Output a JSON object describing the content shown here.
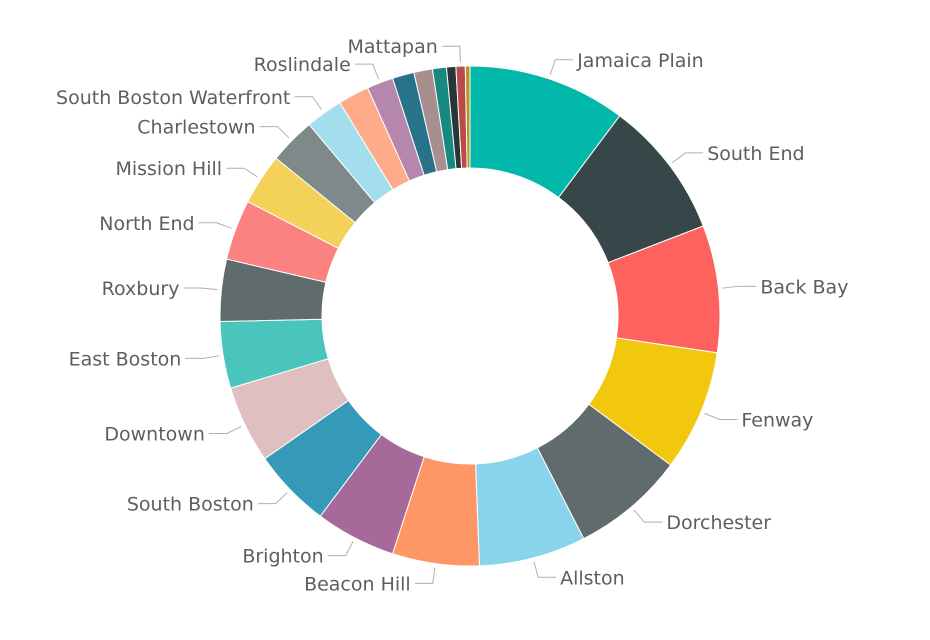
{
  "chart_data": {
    "type": "pie",
    "variant": "donut",
    "title": "",
    "legend": "none",
    "labels_shown": "category names outside with leader lines",
    "slices": [
      {
        "name": "Jamaica Plain",
        "value": 10.2,
        "color": "#01B8AA",
        "show_label": true
      },
      {
        "name": "South End",
        "value": 8.9,
        "color": "#374649",
        "show_label": true
      },
      {
        "name": "Back Bay",
        "value": 8.2,
        "color": "#FD625E",
        "show_label": true
      },
      {
        "name": "Fenway",
        "value": 7.8,
        "color": "#F2C80F",
        "show_label": true
      },
      {
        "name": "Dorchester",
        "value": 7.3,
        "color": "#5F6B6D",
        "show_label": true
      },
      {
        "name": "Allston",
        "value": 6.9,
        "color": "#8AD4EB",
        "show_label": true
      },
      {
        "name": "Beacon Hill",
        "value": 5.6,
        "color": "#FE9666",
        "show_label": true
      },
      {
        "name": "Brighton",
        "value": 5.2,
        "color": "#A66999",
        "show_label": true
      },
      {
        "name": "South Boston",
        "value": 5.1,
        "color": "#3599B8",
        "show_label": true
      },
      {
        "name": "Downtown",
        "value": 5.0,
        "color": "#DFBFBF",
        "show_label": true
      },
      {
        "name": "East Boston",
        "value": 4.3,
        "color": "#4AC5BB",
        "show_label": true
      },
      {
        "name": "Roxbury",
        "value": 4.0,
        "color": "#5F6B6D",
        "show_label": true
      },
      {
        "name": "North End",
        "value": 3.9,
        "color": "#FB8281",
        "show_label": true
      },
      {
        "name": "Mission Hill",
        "value": 3.3,
        "color": "#F4D25A",
        "show_label": true
      },
      {
        "name": "Charlestown",
        "value": 3.0,
        "color": "#7F898A",
        "show_label": true
      },
      {
        "name": "South Boston Waterfront",
        "value": 2.4,
        "color": "#A4DDEE",
        "show_label": true
      },
      {
        "name": "",
        "value": 2.0,
        "color": "#FDAB89",
        "show_label": false
      },
      {
        "name": "Roslindale",
        "value": 1.7,
        "color": "#B687AC",
        "show_label": true
      },
      {
        "name": "",
        "value": 1.4,
        "color": "#28738A",
        "show_label": false
      },
      {
        "name": "",
        "value": 1.2,
        "color": "#A78F8F",
        "show_label": false
      },
      {
        "name": "",
        "value": 0.9,
        "color": "#168980",
        "show_label": false
      },
      {
        "name": "",
        "value": 0.6,
        "color": "#293537",
        "show_label": false
      },
      {
        "name": "Mattapan",
        "value": 0.6,
        "color": "#BB4A4A",
        "show_label": true
      },
      {
        "name": "",
        "value": 0.3,
        "color": "#B59525",
        "show_label": false
      }
    ]
  }
}
